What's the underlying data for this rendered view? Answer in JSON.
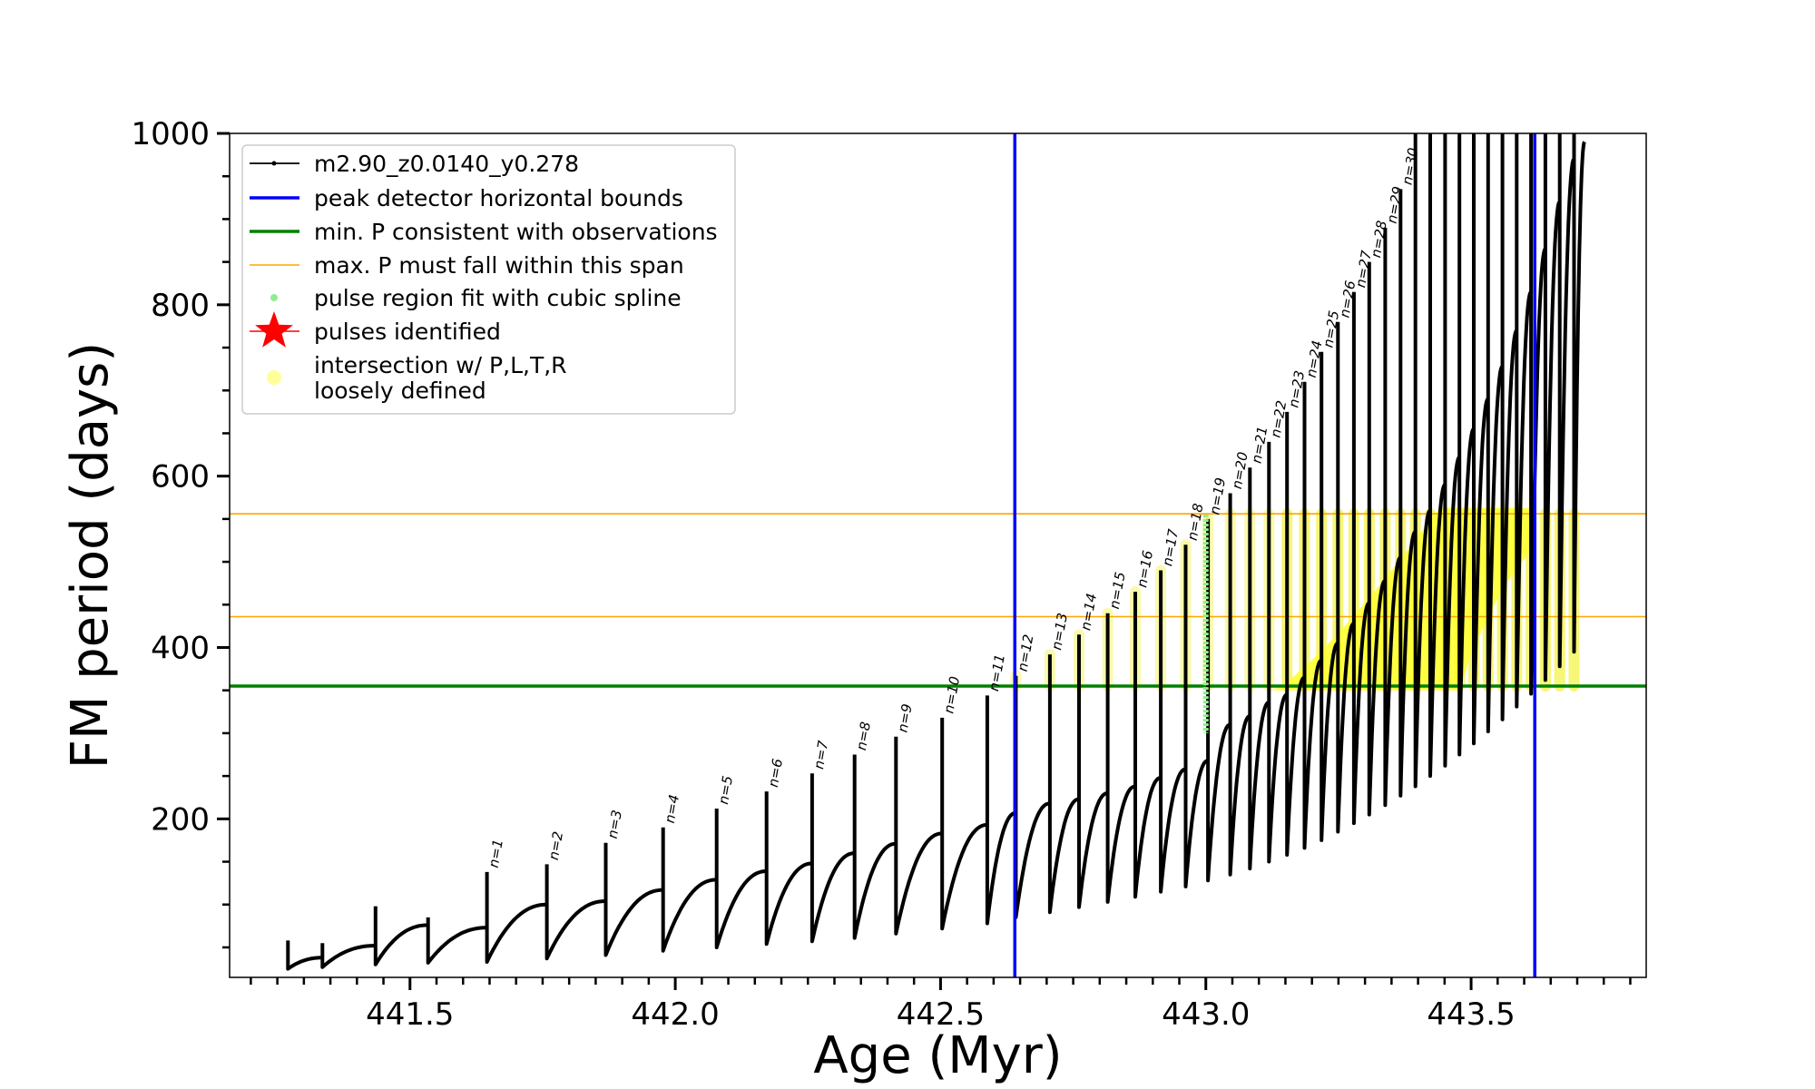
{
  "chart_data": {
    "type": "line",
    "title": "",
    "xlabel": "Age (Myr)",
    "ylabel": "FM period (days)",
    "xlim": [
      441.16,
      443.83
    ],
    "ylim": [
      15,
      1000
    ],
    "xticks": [
      441.5,
      442.0,
      442.5,
      443.0,
      443.5
    ],
    "xtick_labels": [
      "441.5",
      "442.0",
      "442.5",
      "443.0",
      "443.5"
    ],
    "yticks": [
      200,
      400,
      600,
      800,
      1000
    ],
    "ytick_labels": [
      "200",
      "400",
      "600",
      "800",
      "1000"
    ],
    "grid": false,
    "legend_position": "upper-left",
    "legend": [
      {
        "label": "m2.90_z0.0140_y0.278",
        "style": "line-dot",
        "color": "#000000"
      },
      {
        "label": "peak detector horizontal bounds",
        "style": "line",
        "color": "#0000ff"
      },
      {
        "label": "min. P consistent with observations",
        "style": "line",
        "color": "#008000"
      },
      {
        "label": "max. P must fall within this span",
        "style": "line",
        "color": "#ffa500"
      },
      {
        "label": "pulse region fit with cubic spline",
        "style": "dot",
        "color": "#90ee90"
      },
      {
        "label": "pulses identified",
        "style": "star",
        "color": "#ff0000"
      },
      {
        "label": "intersection w/ P,L,T,R",
        "label2": "loosely defined",
        "style": "blob",
        "color": "#ffff99"
      }
    ],
    "vlines": [
      {
        "x": 442.64,
        "color": "#0000ff"
      },
      {
        "x": 443.62,
        "color": "#0000ff"
      }
    ],
    "hlines": [
      {
        "y": 355,
        "color": "#008000"
      },
      {
        "y": 436,
        "color": "#ffa500"
      },
      {
        "y": 556,
        "color": "#ffa500"
      }
    ],
    "pulses": [
      {
        "label": "n=1",
        "x": 441.645,
        "peak": 138,
        "start": 33,
        "pre": 100
      },
      {
        "label": "n=2",
        "x": 441.758,
        "peak": 147,
        "start": 37,
        "pre": 104
      },
      {
        "label": "n=3",
        "x": 441.869,
        "peak": 172,
        "start": 41,
        "pre": 117
      },
      {
        "label": "n=4",
        "x": 441.977,
        "peak": 190,
        "start": 46,
        "pre": 129
      },
      {
        "label": "n=5",
        "x": 442.078,
        "peak": 212,
        "start": 50,
        "pre": 139
      },
      {
        "label": "n=6",
        "x": 442.172,
        "peak": 232,
        "start": 54,
        "pre": 148
      },
      {
        "label": "n=7",
        "x": 442.258,
        "peak": 253,
        "start": 57,
        "pre": 160
      },
      {
        "label": "n=8",
        "x": 442.338,
        "peak": 275,
        "start": 61,
        "pre": 171
      },
      {
        "label": "n=9",
        "x": 442.416,
        "peak": 296,
        "start": 66,
        "pre": 183
      },
      {
        "label": "n=10",
        "x": 442.503,
        "peak": 318,
        "start": 72,
        "pre": 193
      },
      {
        "label": "n=11",
        "x": 442.588,
        "peak": 344,
        "start": 78,
        "pre": 207
      },
      {
        "label": "n=12",
        "x": 442.642,
        "peak": 367,
        "start": 85,
        "pre": 218
      },
      {
        "label": "n=13",
        "x": 442.706,
        "peak": 392,
        "start": 91,
        "pre": 223
      },
      {
        "label": "n=14",
        "x": 442.761,
        "peak": 415,
        "start": 97,
        "pre": 230
      },
      {
        "label": "n=15",
        "x": 442.815,
        "peak": 440,
        "start": 103,
        "pre": 238
      },
      {
        "label": "n=16",
        "x": 442.867,
        "peak": 465,
        "start": 109,
        "pre": 248
      },
      {
        "label": "n=17",
        "x": 442.915,
        "peak": 490,
        "start": 115,
        "pre": 258
      },
      {
        "label": "n=18",
        "x": 442.962,
        "peak": 520,
        "start": 121,
        "pre": 268
      },
      {
        "label": "n=19",
        "x": 443.004,
        "peak": 550,
        "start": 128,
        "pre": 310
      },
      {
        "label": "n=20",
        "x": 443.046,
        "peak": 580,
        "start": 135,
        "pre": 320
      },
      {
        "label": "n=21",
        "x": 443.083,
        "peak": 610,
        "start": 142,
        "pre": 336
      },
      {
        "label": "n=22",
        "x": 443.119,
        "peak": 640,
        "start": 150,
        "pre": 345
      },
      {
        "label": "n=23",
        "x": 443.153,
        "peak": 675,
        "start": 158,
        "pre": 365
      },
      {
        "label": "n=24",
        "x": 443.186,
        "peak": 710,
        "start": 166,
        "pre": 385
      },
      {
        "label": "n=25",
        "x": 443.218,
        "peak": 745,
        "start": 175,
        "pre": 405
      },
      {
        "label": "n=26",
        "x": 443.249,
        "peak": 780,
        "start": 185,
        "pre": 428
      },
      {
        "label": "n=27",
        "x": 443.279,
        "peak": 815,
        "start": 195,
        "pre": 452
      },
      {
        "label": "n=28",
        "x": 443.308,
        "peak": 850,
        "start": 205,
        "pre": 478
      },
      {
        "label": "n=29",
        "x": 443.338,
        "peak": 890,
        "start": 216,
        "pre": 505
      },
      {
        "label": "n=30",
        "x": 443.367,
        "peak": 935,
        "start": 227,
        "pre": 535
      },
      {
        "label": "",
        "x": 443.395,
        "peak": 1000,
        "start": 238,
        "pre": 560
      },
      {
        "label": "",
        "x": 443.423,
        "peak": 1000,
        "start": 250,
        "pre": 590
      },
      {
        "label": "",
        "x": 443.451,
        "peak": 1000,
        "start": 262,
        "pre": 622
      },
      {
        "label": "",
        "x": 443.478,
        "peak": 1000,
        "start": 275,
        "pre": 655
      },
      {
        "label": "",
        "x": 443.505,
        "peak": 1000,
        "start": 288,
        "pre": 690
      },
      {
        "label": "",
        "x": 443.532,
        "peak": 1000,
        "start": 302,
        "pre": 728
      },
      {
        "label": "",
        "x": 443.559,
        "peak": 1000,
        "start": 316,
        "pre": 770
      },
      {
        "label": "",
        "x": 443.586,
        "peak": 1000,
        "start": 331,
        "pre": 815
      },
      {
        "label": "",
        "x": 443.613,
        "peak": 1000,
        "start": 346,
        "pre": 865
      },
      {
        "label": "",
        "x": 443.64,
        "peak": 1000,
        "start": 362,
        "pre": 920
      },
      {
        "label": "",
        "x": 443.667,
        "peak": 1000,
        "start": 378,
        "pre": 970
      },
      {
        "label": "",
        "x": 443.694,
        "peak": 1000,
        "start": 395,
        "pre": 990
      }
    ],
    "early_pulses": [
      {
        "x": 441.27,
        "peak": 58,
        "start": 25,
        "pre": 38
      },
      {
        "x": 441.335,
        "peak": 55,
        "start": 27,
        "pre": 52
      },
      {
        "x": 441.435,
        "peak": 98,
        "start": 30,
        "pre": 76
      },
      {
        "x": 441.534,
        "peak": 85,
        "start": 32,
        "pre": 73
      }
    ],
    "spline_region": {
      "x": 443.0,
      "ymin": 300,
      "ymax": 555
    }
  }
}
